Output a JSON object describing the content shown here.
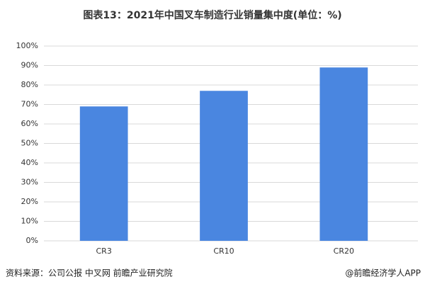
{
  "chart_data": {
    "type": "bar",
    "title": "图表13：2021年中国叉车制造行业销量集中度(单位：%)",
    "categories": [
      "CR3",
      "CR10",
      "CR20"
    ],
    "values": [
      69,
      77,
      89
    ],
    "color": "#4a86e0",
    "ylim": [
      0,
      100
    ],
    "yticks": [
      {
        "value": 0,
        "label": "0%"
      },
      {
        "value": 10,
        "label": "10%"
      },
      {
        "value": 20,
        "label": "20%"
      },
      {
        "value": 30,
        "label": "30%"
      },
      {
        "value": 40,
        "label": "40%"
      },
      {
        "value": 50,
        "label": "50%"
      },
      {
        "value": 60,
        "label": "60%"
      },
      {
        "value": 70,
        "label": "70%"
      },
      {
        "value": 80,
        "label": "80%"
      },
      {
        "value": 90,
        "label": "90%"
      },
      {
        "value": 100,
        "label": "100%"
      }
    ],
    "grid": true,
    "source": "资料来源：公司公报 中叉网 前瞻产业研究院",
    "credit": "@前瞻经济学人APP"
  }
}
